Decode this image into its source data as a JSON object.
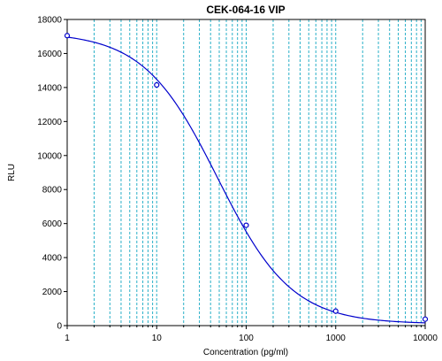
{
  "chart_data": {
    "type": "scatter",
    "title": "CEK-064-16 VIP",
    "xlabel": "Concentration (pg/ml)",
    "ylabel": "RLU",
    "x_scale": "log",
    "xlim": [
      1,
      10000
    ],
    "ylim": [
      0,
      18000
    ],
    "x_ticks": [
      "1",
      "10",
      "100",
      "1000",
      "10000"
    ],
    "y_ticks": [
      "0",
      "2000",
      "4000",
      "6000",
      "8000",
      "10000",
      "12000",
      "14000",
      "16000",
      "18000"
    ],
    "grid": "x-log-dashed",
    "colors": {
      "curve": "#0000cc",
      "points": "#0000cc",
      "grid": "#2ab0c8"
    },
    "series": [
      {
        "points": [
          {
            "x": 1,
            "y": 17050
          },
          {
            "x": 10,
            "y": 14150
          },
          {
            "x": 100,
            "y": 5900
          },
          {
            "x": 1000,
            "y": 850
          },
          {
            "x": 10000,
            "y": 380
          }
        ],
        "fit": {
          "model": "4PL",
          "top": 17250,
          "bottom": 100,
          "ec50": 48,
          "hill": 1.05
        }
      }
    ]
  }
}
